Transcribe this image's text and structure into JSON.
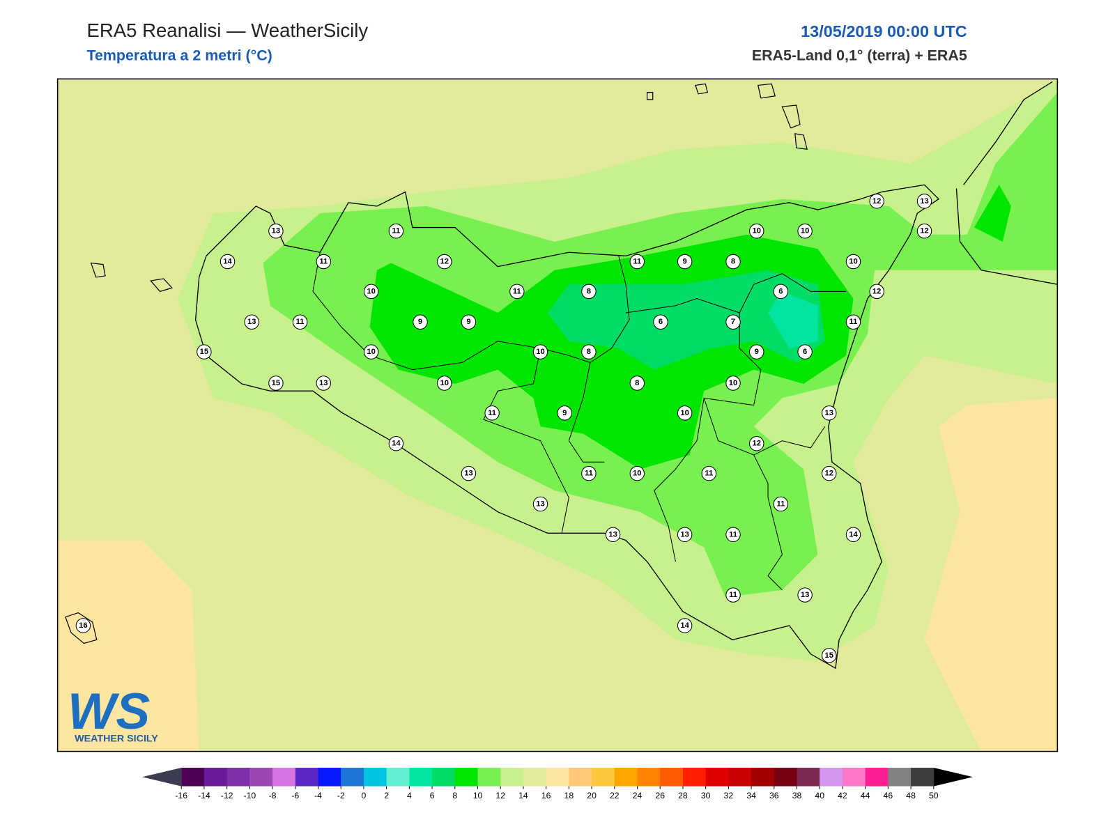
{
  "header": {
    "title": "ERA5 Reanalisi — WeatherSicily",
    "subtitle": "Temperatura a 2 metri (°C)",
    "datetime": "13/05/2019 00:00 UTC",
    "source": "ERA5-Land 0,1° (terra) + ERA5"
  },
  "stations": [
    13,
    11,
    14,
    11,
    12,
    10,
    11,
    8,
    13,
    11,
    9,
    9,
    15,
    10,
    10,
    8,
    15,
    13,
    10,
    11,
    9,
    8,
    14,
    13,
    13,
    11,
    10,
    13,
    13,
    11,
    10,
    10,
    12,
    11,
    11,
    11,
    13,
    14,
    15,
    14,
    12,
    13,
    9,
    6,
    11,
    12,
    10,
    6,
    7,
    6,
    11,
    9,
    8,
    10,
    10,
    12,
    13,
    12,
    16
  ],
  "colorbar": {
    "ticks": [
      -16,
      -14,
      -12,
      -10,
      -8,
      -6,
      -4,
      -2,
      0,
      2,
      4,
      6,
      8,
      10,
      12,
      14,
      16,
      18,
      20,
      22,
      24,
      26,
      28,
      30,
      32,
      34,
      36,
      38,
      40,
      42,
      44,
      46,
      48,
      50
    ],
    "colors": [
      "#4b0055",
      "#6a1a9a",
      "#7f2fa8",
      "#9b47b5",
      "#d873e6",
      "#5b28c8",
      "#0a1aff",
      "#1c78d8",
      "#00c4e0",
      "#64f0d0",
      "#00e6a0",
      "#00dc64",
      "#00e600",
      "#78f050",
      "#c8f08c",
      "#e1eb9b",
      "#ffe6a0",
      "#ffc878",
      "#ffc83c",
      "#ffa500",
      "#ff8200",
      "#ff5a00",
      "#ff1e00",
      "#e10000",
      "#c80000",
      "#a00000",
      "#780014",
      "#7d2850",
      "#d296f0",
      "#ff78c8",
      "#ff1e96",
      "#828282",
      "#3c3c3c"
    ],
    "under_color": "#3c3c50",
    "over_color": "#000000"
  },
  "logo": {
    "mark": "WS",
    "name": "WEATHER SICILY"
  }
}
